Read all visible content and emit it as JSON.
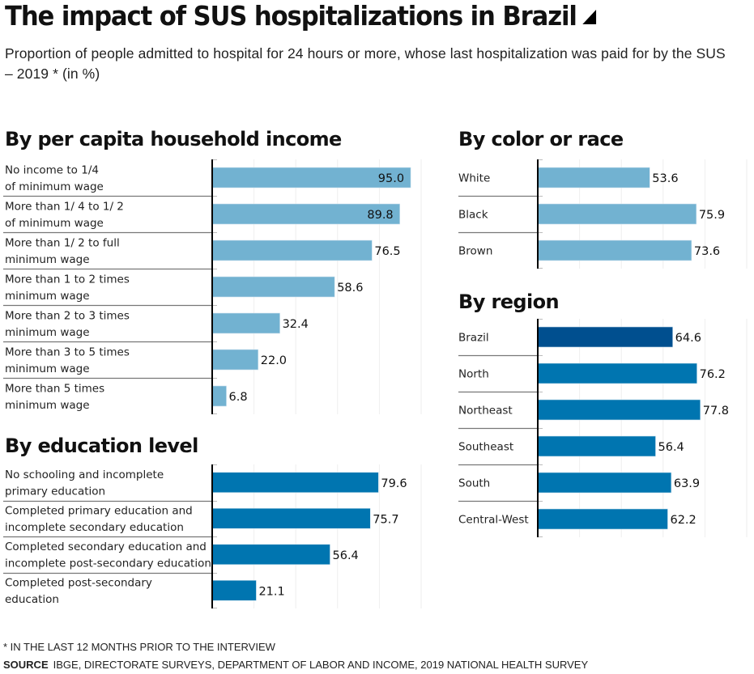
{
  "header": {
    "title": "The impact of SUS hospitalizations in Brazil",
    "title_icon": "triangle-marker-icon",
    "subtitle": "Proportion of people admitted to hospital for 24 hours or more, whose last hospitalization was paid for by the SUS – 2019 * (in %)"
  },
  "colors": {
    "light_blue": "#72b2d1",
    "mid_blue": "#0075b0",
    "dark_blue": "#004f8f",
    "axis": "#000000",
    "grid": "#eeeeee",
    "separator": "#777777"
  },
  "chart_data": [
    {
      "id": "income",
      "type": "bar",
      "orientation": "horizontal",
      "title": "By per capita household income",
      "xlim": [
        0,
        100
      ],
      "grid_step": 20,
      "grid": true,
      "unit": "%",
      "categories": [
        [
          "No income to 1/4",
          "of minimum wage"
        ],
        [
          "More than 1/ 4 to 1/ 2",
          "of minimum wage"
        ],
        [
          "More than 1/ 2 to full",
          "minimum wage"
        ],
        [
          "More than 1 to 2 times",
          "minimum wage"
        ],
        [
          "More than 2 to 3 times",
          "minimum wage"
        ],
        [
          "More than 3 to 5 times",
          "minimum wage"
        ],
        [
          "More than 5 times",
          "minimum wage"
        ]
      ],
      "values": [
        95.0,
        89.8,
        76.5,
        58.6,
        32.4,
        22.0,
        6.8
      ],
      "value_labels": [
        "95.0",
        "89.8",
        "76.5",
        "58.6",
        "32.4",
        "22.0",
        "6.8"
      ],
      "label_inside": [
        true,
        true,
        false,
        false,
        false,
        false,
        false
      ],
      "colors": [
        "light",
        "light",
        "light",
        "light",
        "light",
        "light",
        "light"
      ]
    },
    {
      "id": "education",
      "type": "bar",
      "orientation": "horizontal",
      "title": "By education level",
      "xlim": [
        0,
        100
      ],
      "grid_step": 20,
      "grid": true,
      "unit": "%",
      "categories": [
        [
          "No schooling and incomplete",
          "primary education"
        ],
        [
          "Completed primary education and",
          "incomplete secondary education"
        ],
        [
          "Completed secondary education and",
          "incomplete post-secondary education"
        ],
        [
          "Completed post-secondary",
          "education"
        ]
      ],
      "values": [
        79.6,
        75.7,
        56.4,
        21.1
      ],
      "value_labels": [
        "79.6",
        "75.7",
        "56.4",
        "21.1"
      ],
      "label_inside": [
        false,
        false,
        false,
        false
      ],
      "colors": [
        "mid",
        "mid",
        "mid",
        "mid"
      ]
    },
    {
      "id": "race",
      "type": "bar",
      "orientation": "horizontal",
      "title": "By color or race",
      "xlim": [
        0,
        100
      ],
      "grid_step": 20,
      "grid": true,
      "unit": "%",
      "categories": [
        [
          "White"
        ],
        [
          "Black"
        ],
        [
          "Brown"
        ]
      ],
      "values": [
        53.6,
        75.9,
        73.6
      ],
      "value_labels": [
        "53.6",
        "75.9",
        "73.6"
      ],
      "label_inside": [
        false,
        false,
        false
      ],
      "colors": [
        "light",
        "light",
        "light"
      ]
    },
    {
      "id": "region",
      "type": "bar",
      "orientation": "horizontal",
      "title": "By region",
      "xlim": [
        0,
        100
      ],
      "grid_step": 20,
      "grid": true,
      "unit": "%",
      "categories": [
        [
          "Brazil"
        ],
        [
          "North"
        ],
        [
          "Northeast"
        ],
        [
          "Southeast"
        ],
        [
          "South"
        ],
        [
          "Central-West"
        ]
      ],
      "values": [
        64.6,
        76.2,
        77.8,
        56.4,
        63.9,
        62.2
      ],
      "value_labels": [
        "64.6",
        "76.2",
        "77.8",
        "56.4",
        "63.9",
        "62.2"
      ],
      "label_inside": [
        false,
        false,
        false,
        false,
        false,
        false
      ],
      "colors": [
        "dark",
        "mid",
        "mid",
        "mid",
        "mid",
        "mid"
      ]
    }
  ],
  "footer": {
    "footnote": "* IN THE LAST 12 MONTHS PRIOR TO THE INTERVIEW",
    "source_label": "SOURCE",
    "source_text": "IBGE, DIRECTORATE SURVEYS, DEPARTMENT OF LABOR AND INCOME, 2019 NATIONAL HEALTH SURVEY"
  }
}
